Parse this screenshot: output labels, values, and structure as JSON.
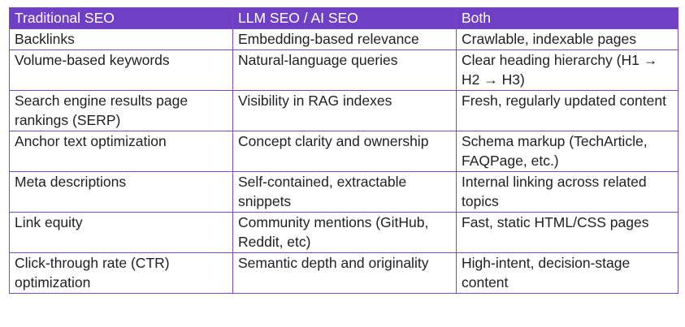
{
  "table": {
    "headers": [
      "Traditional SEO",
      "LLM SEO / AI SEO",
      "Both"
    ],
    "rows": [
      [
        "Backlinks",
        "Embedding-based relevance",
        "Crawlable, indexable pages"
      ],
      [
        "Volume-based keywords",
        "Natural-language queries",
        "Clear heading hierarchy (H1 → H2 → H3)"
      ],
      [
        "Search engine results page rankings (SERP)",
        "Visibility in RAG indexes",
        "Fresh, regularly updated content"
      ],
      [
        "Anchor text optimization",
        "Concept clarity and ownership",
        "Schema markup (TechArticle, FAQPage, etc.)"
      ],
      [
        "Meta descriptions",
        "Self-contained, extractable snippets",
        "Internal linking across related topics"
      ],
      [
        "Link equity",
        "Community mentions (GitHub, Reddit, etc)",
        "Fast, static HTML/CSS pages"
      ],
      [
        "Click-through rate (CTR) optimization",
        "Semantic depth and originality",
        "High-intent, decision-stage content"
      ]
    ],
    "header_color": "#6f3fc6",
    "border_color": "#7b46c8"
  }
}
